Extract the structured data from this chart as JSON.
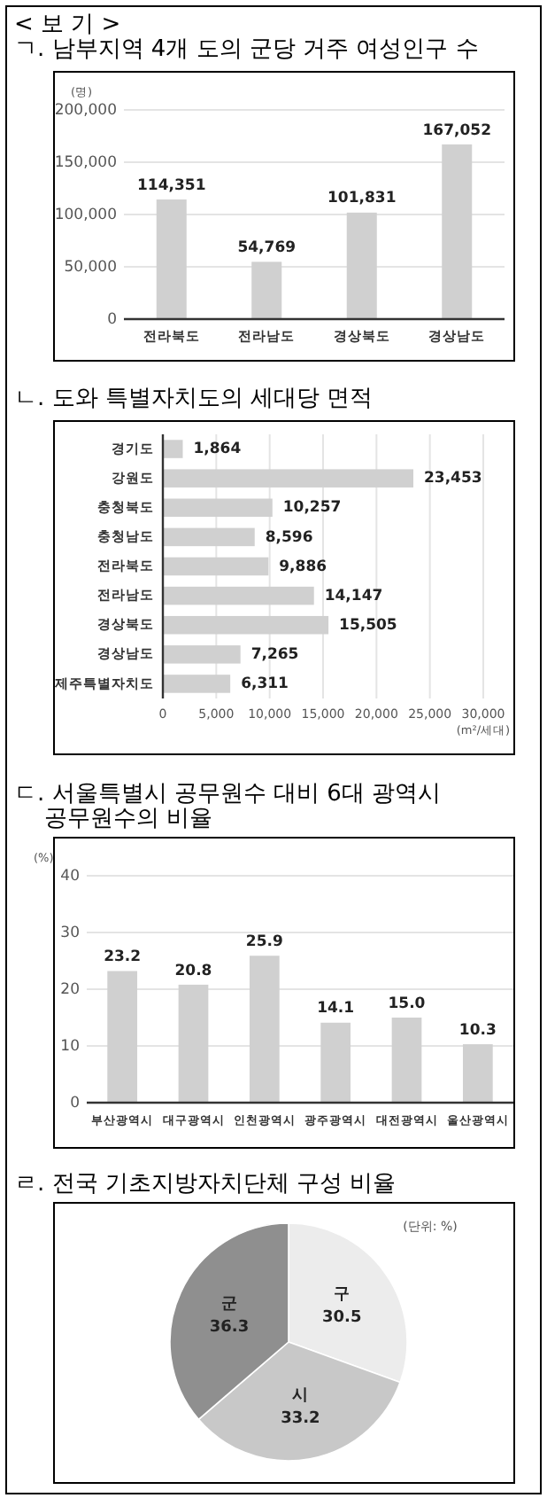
{
  "chart_data": [
    {
      "type": "bar",
      "title": "ㄱ. 남부지역 4개 도의 군당 거주 여성인구 수",
      "ylabel": "(명)",
      "annotations": [
        "< 보 기 >"
      ],
      "categories": [
        "전라북도",
        "전라남도",
        "경상북도",
        "경상남도"
      ],
      "values": [
        114351,
        54769,
        101831,
        167052
      ],
      "value_labels": [
        "114,351",
        "54,769",
        "101,831",
        "167,052"
      ],
      "color": "#d0d0d0",
      "ylim": [
        0,
        200000
      ],
      "yticks": [
        0,
        {
          "value": 50000,
          "label": "50,000"
        },
        {
          "value": 100000,
          "label": "100,000"
        },
        {
          "value": 150000,
          "label": "150,000"
        },
        {
          "value": 200000,
          "label": "200,000"
        }
      ],
      "grid": "y"
    },
    {
      "type": "bar",
      "orientation": "horizontal",
      "title": "ㄴ. 도와 특별자치도의 세대당 면적",
      "xlabel": "(m²/세대)",
      "categories": [
        "경기도",
        "강원도",
        "충청북도",
        "충청남도",
        "전라북도",
        "전라남도",
        "경상북도",
        "경상남도",
        "제주특별자치도"
      ],
      "values": [
        1864,
        23453,
        10257,
        8596,
        9886,
        14147,
        15505,
        7265,
        6311
      ],
      "value_labels": [
        "1,864",
        "23,453",
        "10,257",
        "8,596",
        "9,886",
        "14,147",
        "15,505",
        "7,265",
        "6,311"
      ],
      "color": "#d0d0d0",
      "xlim": [
        0,
        30000
      ],
      "xticks": [
        0,
        {
          "value": 5000,
          "label": "5,000"
        },
        {
          "value": 10000,
          "label": "10,000"
        },
        {
          "value": 15000,
          "label": "15,000"
        },
        {
          "value": 20000,
          "label": "20,000"
        },
        {
          "value": 25000,
          "label": "25,000"
        },
        {
          "value": 30000,
          "label": "30,000"
        }
      ],
      "grid": "x"
    },
    {
      "type": "bar",
      "title": "ㄷ. 서울특별시 공무원수 대비 6대 광역시 공무원수의 비율",
      "ylabel": "(%)",
      "categories": [
        "부산광역시",
        "대구광역시",
        "인천광역시",
        "광주광역시",
        "대전광역시",
        "울산광역시"
      ],
      "values": [
        23.2,
        20.8,
        25.9,
        14.1,
        15.0,
        10.3
      ],
      "value_labels": [
        "23.2",
        "20.8",
        "25.9",
        "14.1",
        "15.0",
        "10.3"
      ],
      "color": "#d0d0d0",
      "ylim": [
        0,
        40
      ],
      "yticks": [
        0,
        10,
        20,
        30,
        40
      ],
      "grid": "y"
    },
    {
      "type": "pie",
      "title": "ㄹ. 전국 기초지방자치단체 구성 비율",
      "annotations": [
        "(단위: %)"
      ],
      "categories": [
        "구",
        "시",
        "군"
      ],
      "values": [
        30.5,
        33.2,
        36.3
      ],
      "value_labels": [
        "30.5",
        "33.2",
        "36.3"
      ],
      "colors": [
        "#ececec",
        "#c8c8c8",
        "#8f8f8f"
      ]
    }
  ]
}
